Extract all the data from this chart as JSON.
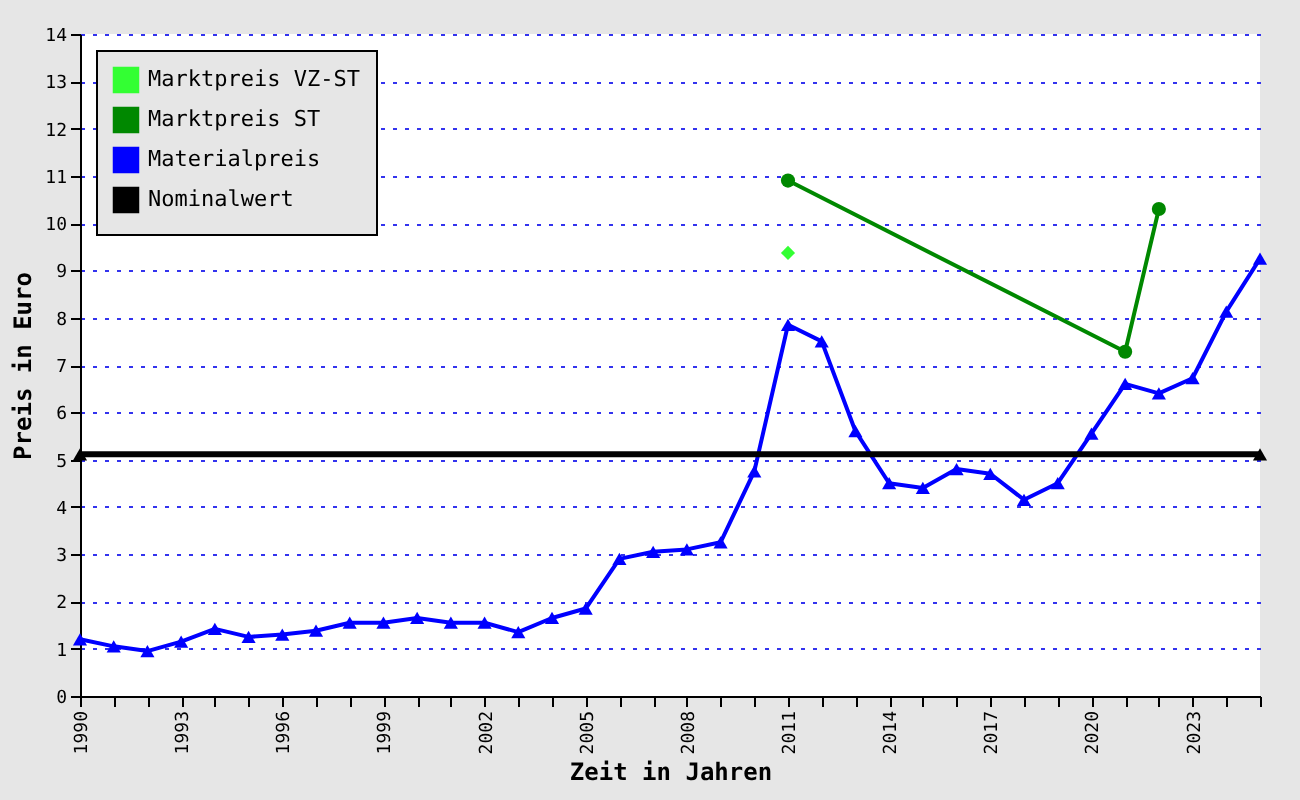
{
  "chart_data": {
    "type": "line",
    "xlabel": "Zeit in Jahren",
    "ylabel": "Preis in Euro",
    "xlim": [
      1990,
      2025
    ],
    "xticks": [
      1990,
      {
        "value": 1991,
        "label": null
      },
      {
        "value": 1992,
        "label": null
      },
      1993,
      {
        "value": 1994,
        "label": null
      },
      {
        "value": 1995,
        "label": null
      },
      1996,
      {
        "value": 1997,
        "label": null
      },
      {
        "value": 1998,
        "label": null
      },
      1999,
      {
        "value": 2000,
        "label": null
      },
      {
        "value": 2001,
        "label": null
      },
      2002,
      {
        "value": 2003,
        "label": null
      },
      {
        "value": 2004,
        "label": null
      },
      2005,
      {
        "value": 2006,
        "label": null
      },
      {
        "value": 2007,
        "label": null
      },
      2008,
      {
        "value": 2009,
        "label": null
      },
      {
        "value": 2010,
        "label": null
      },
      2011,
      {
        "value": 2012,
        "label": null
      },
      {
        "value": 2013,
        "label": null
      },
      2014,
      {
        "value": 2015,
        "label": null
      },
      {
        "value": 2016,
        "label": null
      },
      2017,
      {
        "value": 2018,
        "label": null
      },
      {
        "value": 2019,
        "label": null
      },
      2020,
      {
        "value": 2021,
        "label": null
      },
      {
        "value": 2022,
        "label": null
      },
      2023,
      {
        "value": 2024,
        "label": null
      },
      {
        "value": 2025,
        "label": null
      }
    ],
    "ylim": [
      0,
      14
    ],
    "yticks": [
      0,
      1,
      2,
      3,
      4,
      5,
      6,
      7,
      8,
      9,
      10,
      11,
      12,
      13,
      14
    ],
    "grid": "y",
    "legend": "top left",
    "series": [
      {
        "name": "Marktpreis VZ-ST",
        "type": "scatter",
        "marker": "diamond",
        "color": "#33ff33",
        "x": [
          2011
        ],
        "values": [
          9.37
        ]
      },
      {
        "name": "Marktpreis ST",
        "marker": "circle",
        "color": "#008800",
        "x": [
          2011,
          2021,
          2022
        ],
        "values": [
          10.9,
          7.28,
          10.3
        ]
      },
      {
        "name": "Materialpreis",
        "marker": "triangle",
        "color": "#0000ff",
        "x": [
          1990,
          1991,
          1992,
          1993,
          1994,
          1995,
          1996,
          1997,
          1998,
          1999,
          2000,
          2001,
          2002,
          2003,
          2004,
          2005,
          2006,
          2007,
          2008,
          2009,
          2010,
          2011,
          2012,
          2013,
          2014,
          2015,
          2016,
          2017,
          2018,
          2019,
          2020,
          2021,
          2022,
          2023,
          2024,
          2025
        ],
        "values": [
          1.2,
          1.05,
          0.95,
          1.15,
          1.42,
          1.25,
          1.3,
          1.38,
          1.55,
          1.55,
          1.65,
          1.55,
          1.55,
          1.35,
          1.65,
          1.85,
          2.9,
          3.05,
          3.1,
          3.25,
          4.75,
          7.85,
          7.5,
          5.6,
          4.5,
          4.4,
          4.8,
          4.7,
          4.15,
          4.5,
          5.55,
          6.6,
          6.4,
          6.72,
          8.13,
          9.25
        ]
      },
      {
        "name": "Nominalwert",
        "marker": "triangle",
        "color": "#000000",
        "x": [
          1990,
          2025
        ],
        "values": [
          5.11,
          5.11
        ]
      }
    ]
  }
}
